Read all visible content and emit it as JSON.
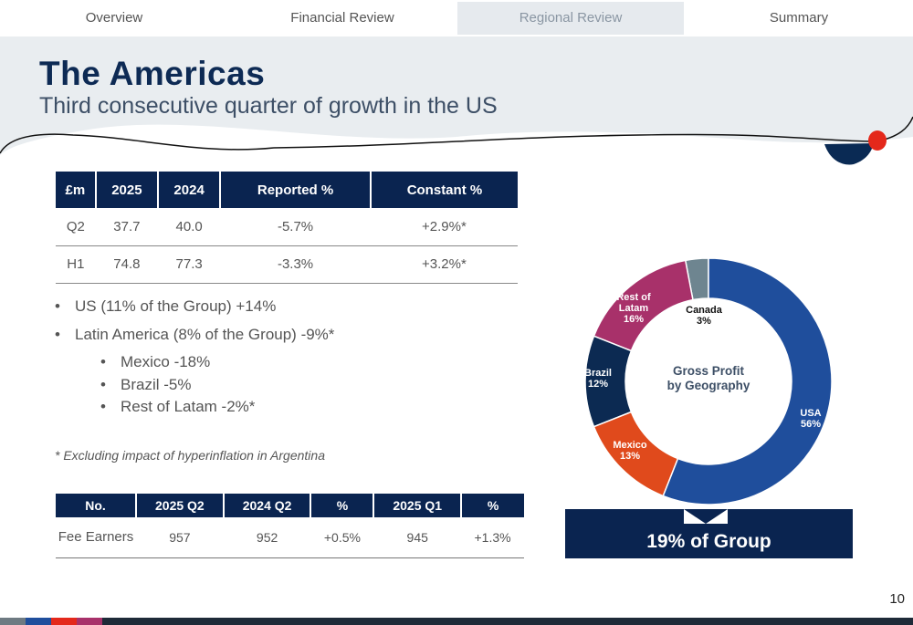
{
  "tabs": [
    "Overview",
    "Financial Review",
    "Regional Review",
    "Summary"
  ],
  "active_tab": "Regional Review",
  "title": "The Americas",
  "subtitle": "Third consecutive quarter of growth in the US",
  "table1": {
    "headers": [
      "£m",
      "2025",
      "2024",
      "Reported %",
      "Constant %"
    ],
    "rows": [
      [
        "Q2",
        "37.7",
        "40.0",
        "-5.7%",
        "+2.9%*"
      ],
      [
        "H1",
        "74.8",
        "77.3",
        "-3.3%",
        "+3.2%*"
      ]
    ]
  },
  "bullets": [
    "US (11% of the Group) +14%",
    "Latin America (8% of the Group) -9%*",
    "Mexico -18%",
    "Brazil -5%",
    "Rest of Latam -2%*"
  ],
  "footnote": "*  Excluding impact of hyperinflation in Argentina",
  "table2": {
    "headers": [
      "No.",
      "2025 Q2",
      "2024 Q2",
      "%",
      "2025 Q1",
      "%"
    ],
    "rows": [
      [
        "Fee Earners",
        "957",
        "952",
        "+0.5%",
        "945",
        "+1.3%"
      ]
    ]
  },
  "chart_data": {
    "type": "pie",
    "donut": true,
    "title": "Gross Profit by Geography",
    "slices": [
      {
        "label": "USA",
        "value": 56,
        "display": "56%",
        "color": "#1f4e9c"
      },
      {
        "label": "Mexico",
        "value": 13,
        "display": "13%",
        "color": "#e04a1c"
      },
      {
        "label": "Brazil",
        "value": 12,
        "display": "12%",
        "color": "#0c2a52"
      },
      {
        "label": "Rest of Latam",
        "value": 16,
        "display": "16%",
        "color": "#a8316a"
      },
      {
        "label": "Canada",
        "value": 3,
        "display": "3%",
        "color": "#6e8590"
      }
    ]
  },
  "callout": "19% of Group",
  "page_number": "10"
}
